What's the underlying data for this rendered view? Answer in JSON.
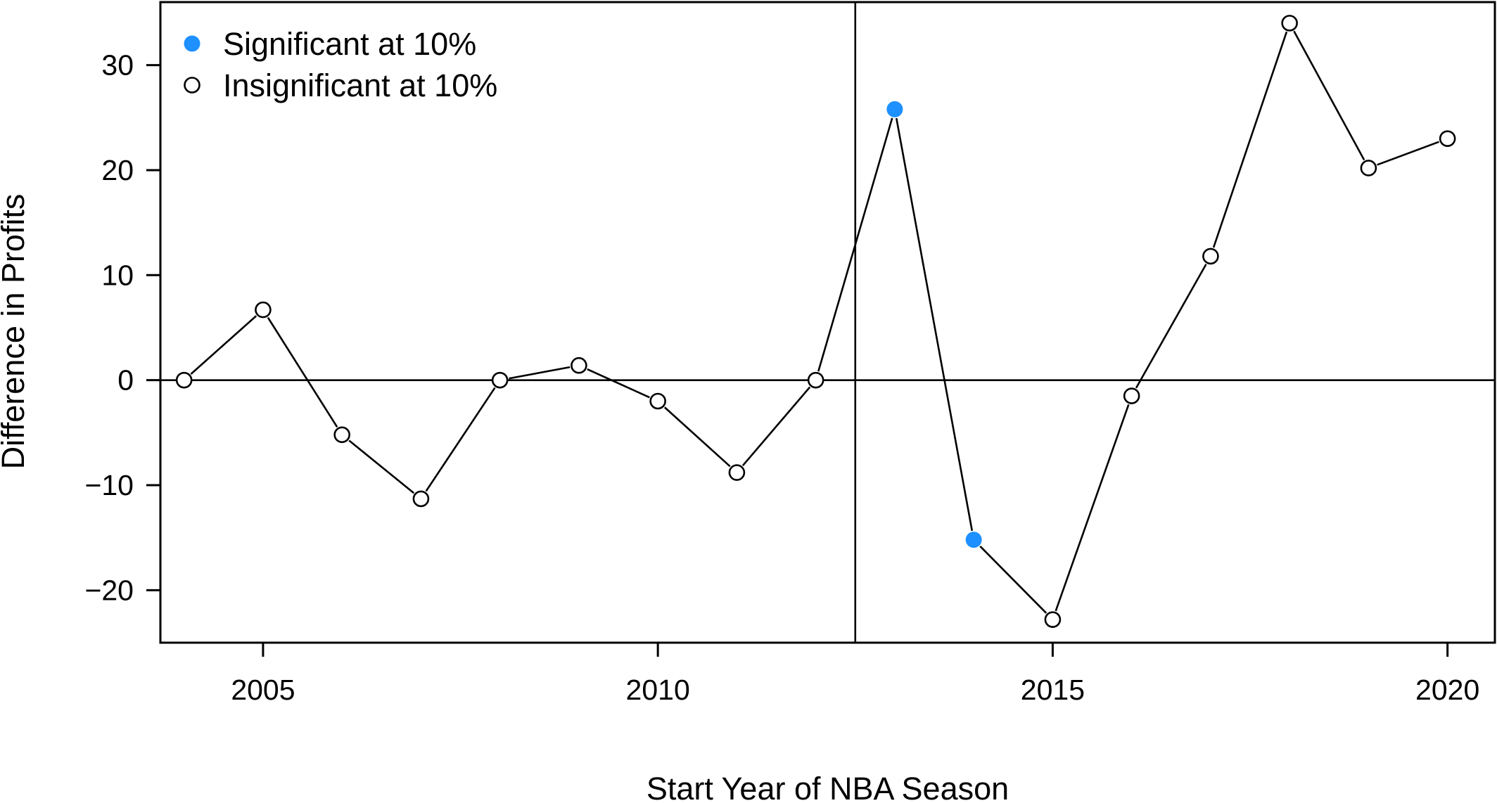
{
  "chart_data": {
    "type": "line",
    "title": "",
    "xlabel": "Start Year of NBA Season",
    "ylabel": "Difference in Profits",
    "xlim": [
      2003.7,
      2020.6
    ],
    "ylim": [
      -25,
      36
    ],
    "x_ticks": [
      2005,
      2010,
      2015,
      2020
    ],
    "x_tick_labels": [
      "2005",
      "2010",
      "2015",
      "2020"
    ],
    "y_ticks": [
      -20,
      -10,
      0,
      10,
      20,
      30
    ],
    "y_tick_labels": [
      "−20",
      "−10",
      "0",
      "10",
      "20",
      "30"
    ],
    "reference_lines": {
      "horizontal_y": 0,
      "vertical_x": 2012.5
    },
    "grid": false,
    "legend_position": "top-left",
    "legend": [
      {
        "label": "Significant at 10%",
        "marker": "filled-circle",
        "color": "#1e90ff"
      },
      {
        "label": "Insignificant at 10%",
        "marker": "open-circle",
        "color": "#000000"
      }
    ],
    "series": [
      {
        "x": [
          2004,
          2005,
          2006,
          2007,
          2008,
          2009,
          2010,
          2011,
          2012,
          2013,
          2014,
          2015,
          2016,
          2017,
          2018,
          2019,
          2020
        ],
        "values": [
          0,
          6.7,
          -5.2,
          -11.3,
          0,
          1.4,
          -2,
          -8.8,
          0,
          25.8,
          -15.2,
          -22.8,
          -1.5,
          11.8,
          34,
          20.2,
          23
        ],
        "significant": [
          false,
          false,
          false,
          false,
          false,
          false,
          false,
          false,
          false,
          true,
          true,
          false,
          false,
          false,
          false,
          false,
          false
        ]
      }
    ]
  }
}
